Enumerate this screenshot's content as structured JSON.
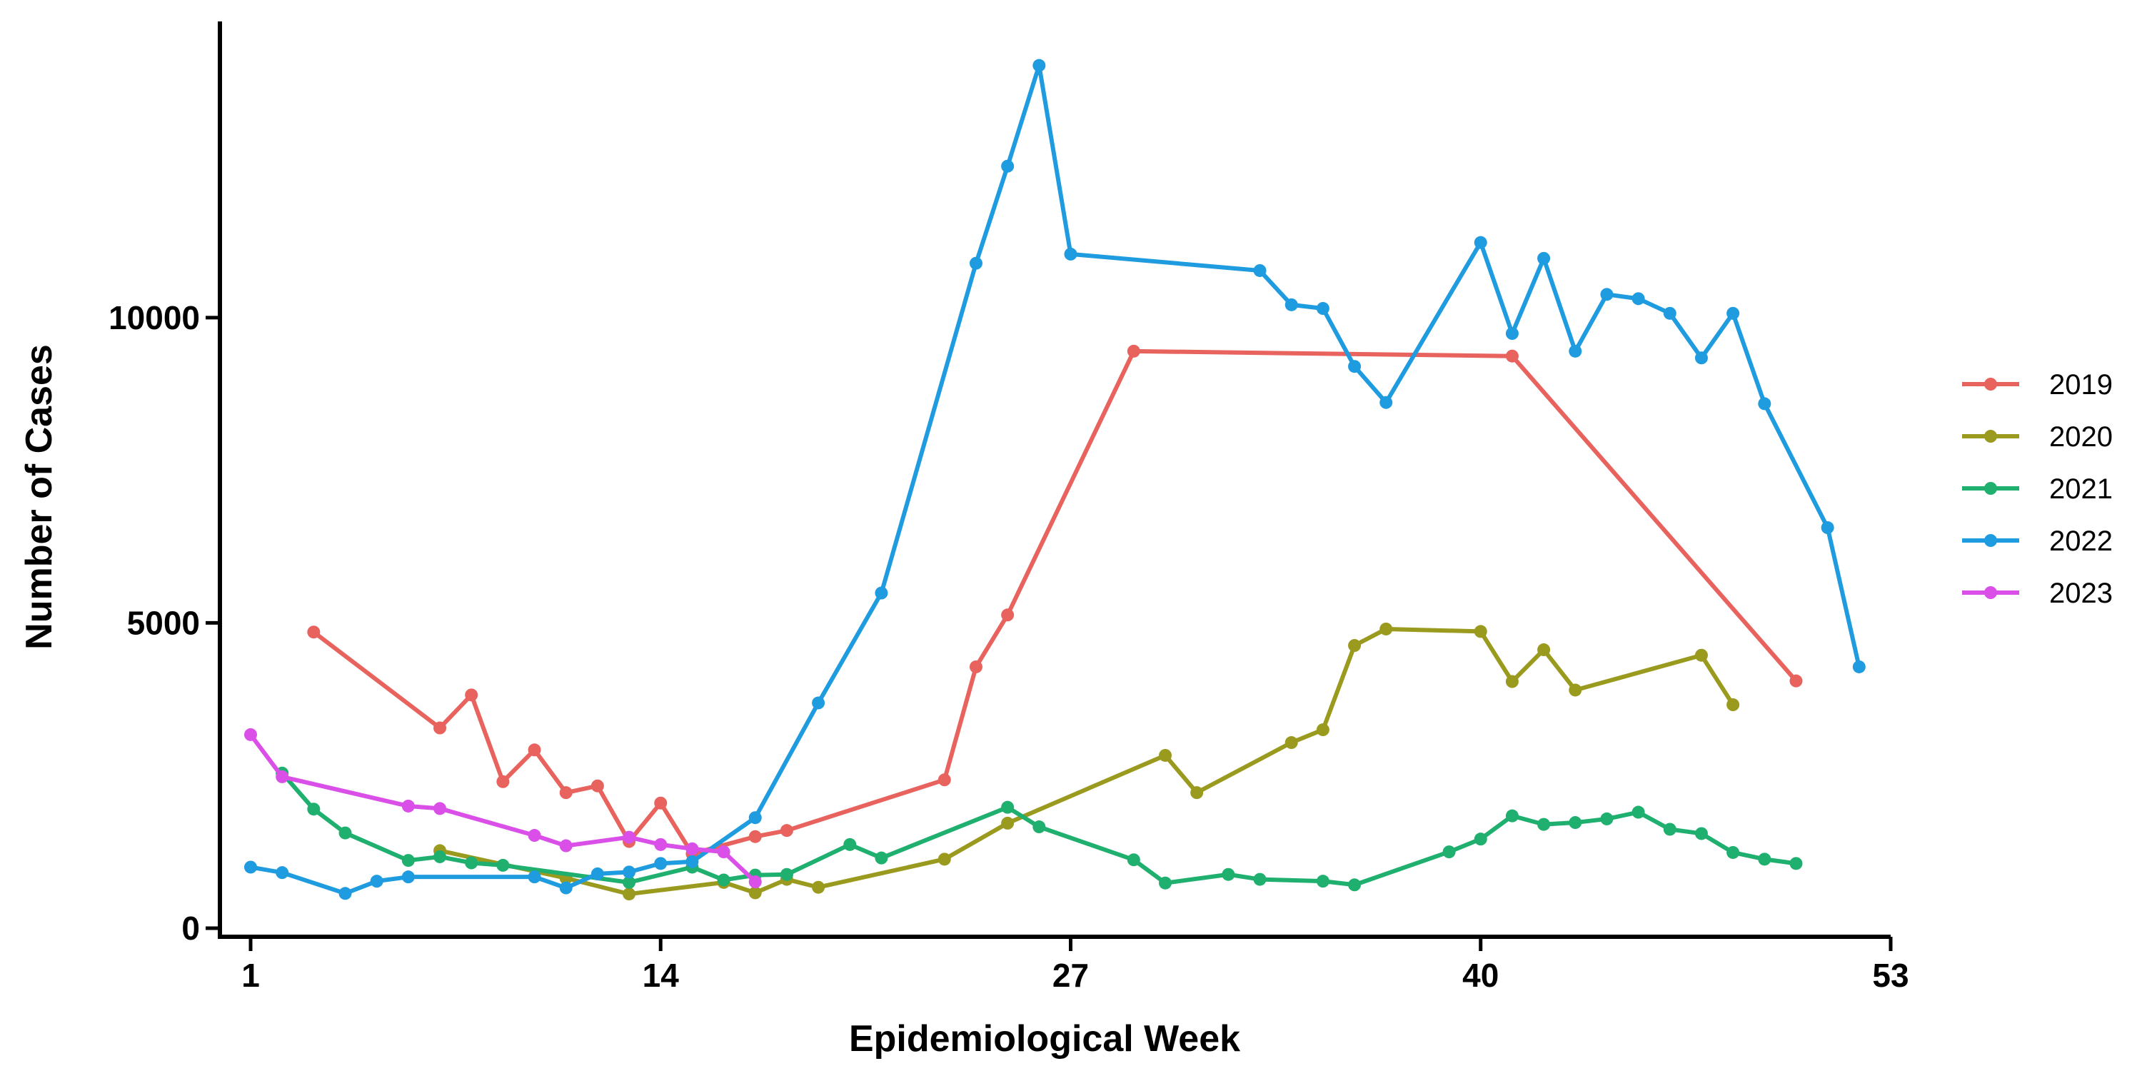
{
  "chart_data": {
    "type": "line",
    "xlabel": "Epidemiological Week",
    "ylabel": "Number of Cases",
    "xlim": [
      1,
      53
    ],
    "ylim": [
      0,
      14500
    ],
    "x_ticks": [
      1,
      14,
      27,
      40,
      53
    ],
    "y_ticks": [
      0,
      5000,
      10000
    ],
    "grid": false,
    "legend_position": "right",
    "series": [
      {
        "name": "2019",
        "color": "#E8625E",
        "x": [
          3,
          7,
          8,
          9,
          10,
          11,
          12,
          13,
          14,
          15,
          17,
          18,
          23,
          24,
          25,
          29,
          41,
          50
        ],
        "y": [
          4850,
          3280,
          3820,
          2400,
          2920,
          2220,
          2330,
          1420,
          2050,
          1220,
          1500,
          1600,
          2430,
          4280,
          5130,
          9450,
          9370,
          4050
        ]
      },
      {
        "name": "2020",
        "color": "#9A9A1E",
        "x": [
          7,
          11,
          13,
          16,
          17,
          18,
          19,
          23,
          25,
          30,
          31,
          34,
          35,
          36,
          37,
          40,
          41,
          42,
          43,
          47,
          48
        ],
        "y": [
          1270,
          820,
          560,
          750,
          580,
          800,
          670,
          1130,
          1720,
          2830,
          2220,
          3040,
          3250,
          4630,
          4900,
          4860,
          4040,
          4560,
          3900,
          4470,
          3660
        ]
      },
      {
        "name": "2021",
        "color": "#1FAF6E",
        "x": [
          2,
          3,
          4,
          6,
          7,
          8,
          9,
          13,
          15,
          16,
          17,
          18,
          20,
          21,
          25,
          26,
          29,
          30,
          32,
          33,
          35,
          36,
          39,
          40,
          41,
          42,
          43,
          44,
          45,
          46,
          47,
          48,
          49,
          50
        ],
        "y": [
          2540,
          1950,
          1560,
          1110,
          1170,
          1070,
          1030,
          750,
          1000,
          790,
          870,
          880,
          1370,
          1150,
          1980,
          1660,
          1120,
          740,
          880,
          800,
          770,
          710,
          1250,
          1460,
          1840,
          1700,
          1730,
          1790,
          1900,
          1620,
          1550,
          1240,
          1130,
          1060
        ]
      },
      {
        "name": "2022",
        "color": "#1F9BE0",
        "x": [
          1,
          2,
          4,
          5,
          6,
          10,
          11,
          12,
          13,
          14,
          15,
          17,
          19,
          21,
          24,
          25,
          26,
          27,
          33,
          34,
          35,
          36,
          37,
          40,
          41,
          42,
          43,
          44,
          45,
          46,
          47,
          48,
          49,
          51,
          52
        ],
        "y": [
          1000,
          910,
          570,
          770,
          840,
          840,
          660,
          890,
          920,
          1060,
          1090,
          1810,
          3690,
          5490,
          10890,
          12480,
          14130,
          11040,
          10770,
          10210,
          10150,
          9200,
          8610,
          11230,
          9740,
          10970,
          9450,
          10380,
          10310,
          10070,
          9340,
          10070,
          8590,
          6560,
          4280
        ]
      },
      {
        "name": "2023",
        "color": "#D94FE8",
        "x": [
          1,
          2,
          6,
          7,
          10,
          11,
          13,
          14,
          15,
          16,
          17
        ],
        "y": [
          3170,
          2480,
          2000,
          1960,
          1520,
          1350,
          1490,
          1370,
          1300,
          1250,
          760
        ]
      }
    ]
  }
}
